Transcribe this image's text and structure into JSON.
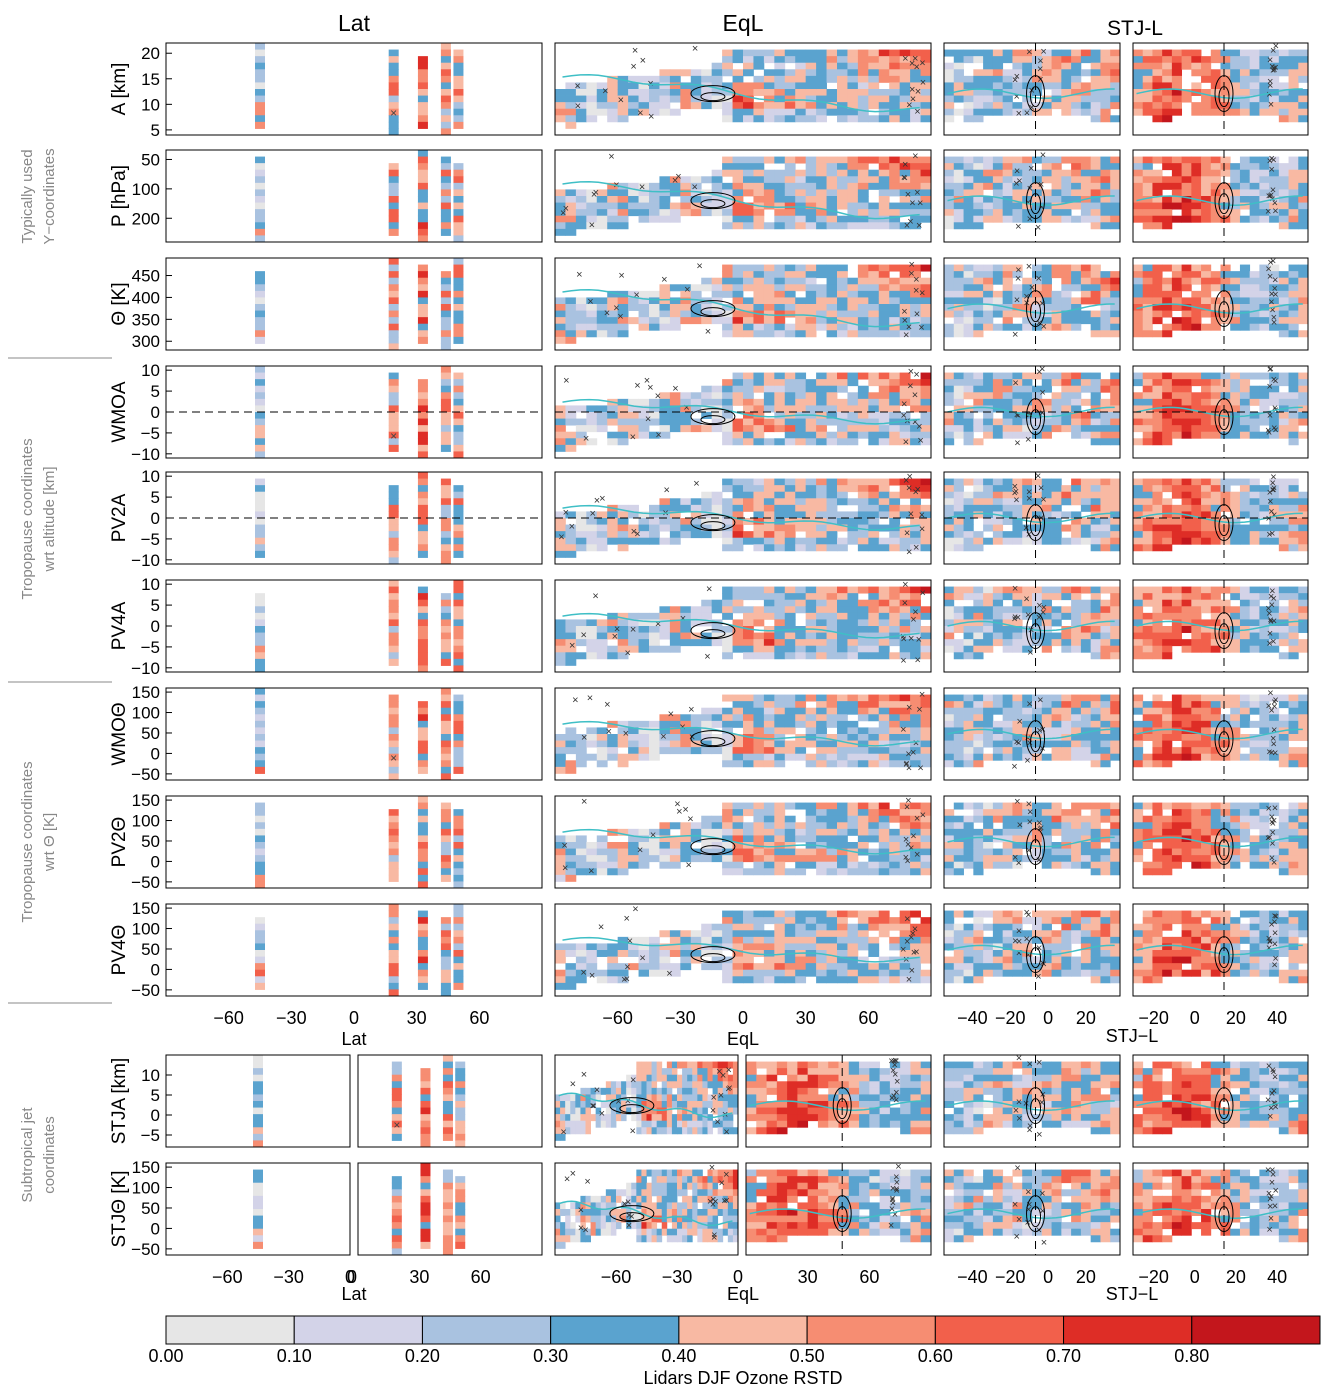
{
  "chart_data": {
    "type": "heatmap",
    "column_titles": [
      "Lat",
      "EqL",
      "STJ-L"
    ],
    "group_labels": [
      [
        "Typically used",
        "Y−coordinates"
      ],
      [
        "Tropopause coordinates",
        "wrt  altitude [km]"
      ],
      [
        "Tropopause coordinates",
        "wrt Θ [K]"
      ],
      [
        "Subtropical jet",
        "coordinates"
      ]
    ],
    "rows": [
      {
        "label": "A [km]",
        "yticks": [
          "20",
          "15",
          "10",
          "5"
        ],
        "yrange": [
          4,
          22
        ],
        "dashed_zero": false
      },
      {
        "label": "P [hPa]",
        "yticks": [
          "50",
          "100",
          "200"
        ],
        "yrange": [
          350,
          40
        ],
        "dashed_zero": false
      },
      {
        "label": "Θ [K]",
        "yticks": [
          "450",
          "400",
          "350",
          "300"
        ],
        "yrange": [
          280,
          490
        ],
        "dashed_zero": false
      },
      {
        "label": "WMOA",
        "yticks": [
          "10",
          "5",
          "0",
          "−5",
          "−10"
        ],
        "yrange": [
          -11,
          11
        ],
        "dashed_zero": true
      },
      {
        "label": "PV2A",
        "yticks": [
          "10",
          "5",
          "0",
          "−5",
          "−10"
        ],
        "yrange": [
          -11,
          11
        ],
        "dashed_zero": true
      },
      {
        "label": "PV4A",
        "yticks": [
          "10",
          "5",
          "0",
          "−5",
          "−10"
        ],
        "yrange": [
          -11,
          11
        ],
        "dashed_zero": false
      },
      {
        "label": "WMOΘ",
        "yticks": [
          "150",
          "100",
          "50",
          "0",
          "−50"
        ],
        "yrange": [
          -65,
          160
        ],
        "dashed_zero": false
      },
      {
        "label": "PV2Θ",
        "yticks": [
          "150",
          "100",
          "50",
          "0",
          "−50"
        ],
        "yrange": [
          -65,
          160
        ],
        "dashed_zero": false
      },
      {
        "label": "PV4Θ",
        "yticks": [
          "150",
          "100",
          "50",
          "0",
          "−50"
        ],
        "yrange": [
          -65,
          160
        ],
        "dashed_zero": false
      },
      {
        "label": "STJA [km]",
        "yticks": [
          "10",
          "5",
          "0",
          "−5"
        ],
        "yrange": [
          -8,
          15
        ],
        "dashed_zero": false
      },
      {
        "label": "STJΘ [K]",
        "yticks": [
          "150",
          "100",
          "50",
          "0",
          "−50"
        ],
        "yrange": [
          -65,
          160
        ],
        "dashed_zero": false
      }
    ],
    "x_axes": {
      "lat": {
        "label": "Lat",
        "ticks": [
          "−60",
          "−30",
          "0",
          "30",
          "60"
        ],
        "range": [
          -90,
          90
        ]
      },
      "lat_split": {
        "label": "Lat",
        "ticks": [
          "−60",
          "−30",
          "0",
          "30",
          "60"
        ]
      },
      "eql": {
        "label": "EqL",
        "ticks": [
          "−60",
          "−30",
          "0",
          "30",
          "60"
        ],
        "range": [
          -90,
          90
        ]
      },
      "stjl": {
        "label": "STJ−L",
        "ticks": [
          "−40",
          "−20",
          "0",
          "20",
          "40"
        ],
        "range": [
          -60,
          60
        ]
      },
      "stjl_split": {
        "label": "STJ−L",
        "ticks": [
          "−20",
          "0",
          "20",
          "40"
        ]
      }
    },
    "lidar_latitudes": [
      -45,
      19,
      33,
      44,
      50
    ],
    "colorbar": {
      "title": "Lidars DJF Ozone RSTD",
      "tick_labels": [
        "0.00",
        "0.10",
        "0.20",
        "0.30",
        "0.40",
        "0.50",
        "0.60",
        "0.70",
        "0.80"
      ],
      "bins": [
        0.0,
        0.1,
        0.2,
        0.3,
        0.4,
        0.5,
        0.6,
        0.7,
        0.8,
        0.9
      ],
      "colors": [
        "#e6e6e6",
        "#d3d3e8",
        "#a9c2e0",
        "#5aa3cf",
        "#f8b9a3",
        "#f68d72",
        "#f2604b",
        "#de2d26",
        "#c3161c"
      ]
    },
    "marker_colors": {
      "jet_contour": "#000000",
      "tropopause_line": "#3fbfc6",
      "insignificant_marker": "#555555"
    }
  }
}
